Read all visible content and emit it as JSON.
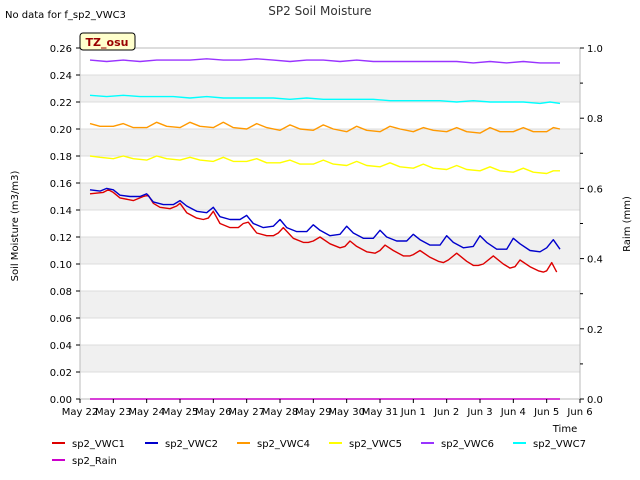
{
  "note": "No data for f_sp2_VWC3",
  "site_label": "TZ_osu",
  "chart_data": {
    "type": "line",
    "title": "SP2 Soil Moisture",
    "xlabel": "Time",
    "ylabel": "Soil Moisture (m3/m3)",
    "y2label": "Raim (mm)",
    "xlim": [
      0,
      15
    ],
    "ylim": [
      0.0,
      0.26
    ],
    "y2lim": [
      0.0,
      1.0
    ],
    "x_ticks": [
      0,
      1,
      2,
      3,
      4,
      5,
      6,
      7,
      8,
      9,
      10,
      11,
      12,
      13,
      14,
      15
    ],
    "x_tick_labels": [
      "May 22",
      "May 23",
      "May 24",
      "May 25",
      "May 26",
      "May 27",
      "May 28",
      "May 29",
      "May 30",
      "May 31",
      "Jun 1",
      "Jun 2",
      "Jun 3",
      "Jun 4",
      "Jun 5",
      "Jun 6"
    ],
    "y_ticks": [
      0.0,
      0.02,
      0.04,
      0.06,
      0.08,
      0.1,
      0.12,
      0.14,
      0.16,
      0.18,
      0.2,
      0.22,
      0.24,
      0.26
    ],
    "y_tick_labels": [
      "0.00",
      "0.02",
      "0.04",
      "0.06",
      "0.08",
      "0.10",
      "0.12",
      "0.14",
      "0.16",
      "0.18",
      "0.20",
      "0.22",
      "0.24",
      "0.26"
    ],
    "y2_ticks": [
      0.0,
      0.2,
      0.4,
      0.6,
      0.8,
      1.0
    ],
    "y2_tick_labels": [
      "0.0",
      "0.2",
      "0.4",
      "0.6",
      "0.8",
      "1.0"
    ],
    "series": [
      {
        "name": "sp2_VWC1",
        "color": "#dd0000",
        "x": [
          0.3,
          0.7,
          0.85,
          1.0,
          1.2,
          1.6,
          1.9,
          2.05,
          2.2,
          2.4,
          2.7,
          2.9,
          3.0,
          3.2,
          3.5,
          3.7,
          3.85,
          4.0,
          4.2,
          4.5,
          4.75,
          4.9,
          5.05,
          5.3,
          5.6,
          5.8,
          5.95,
          6.1,
          6.4,
          6.7,
          6.85,
          7.0,
          7.2,
          7.5,
          7.8,
          7.95,
          8.1,
          8.3,
          8.6,
          8.85,
          9.0,
          9.15,
          9.4,
          9.7,
          9.9,
          10.0,
          10.2,
          10.5,
          10.75,
          10.9,
          11.05,
          11.3,
          11.6,
          11.8,
          11.95,
          12.1,
          12.4,
          12.7,
          12.9,
          13.05,
          13.2,
          13.5,
          13.75,
          13.9,
          14.0,
          14.15,
          14.3
        ],
        "y": [
          0.152,
          0.153,
          0.155,
          0.153,
          0.149,
          0.147,
          0.15,
          0.151,
          0.145,
          0.142,
          0.141,
          0.143,
          0.145,
          0.138,
          0.134,
          0.133,
          0.134,
          0.139,
          0.13,
          0.127,
          0.127,
          0.13,
          0.131,
          0.123,
          0.121,
          0.121,
          0.123,
          0.127,
          0.119,
          0.116,
          0.116,
          0.117,
          0.12,
          0.115,
          0.112,
          0.113,
          0.117,
          0.113,
          0.109,
          0.108,
          0.11,
          0.114,
          0.11,
          0.106,
          0.106,
          0.107,
          0.11,
          0.105,
          0.102,
          0.101,
          0.103,
          0.108,
          0.102,
          0.099,
          0.099,
          0.1,
          0.106,
          0.1,
          0.097,
          0.098,
          0.103,
          0.098,
          0.095,
          0.094,
          0.095,
          0.101,
          0.094
        ]
      },
      {
        "name": "sp2_VWC2",
        "color": "#0000cc",
        "x": [
          0.3,
          0.6,
          0.8,
          1.0,
          1.2,
          1.5,
          1.8,
          2.0,
          2.2,
          2.5,
          2.8,
          3.0,
          3.2,
          3.5,
          3.8,
          4.0,
          4.2,
          4.5,
          4.8,
          5.0,
          5.2,
          5.5,
          5.8,
          6.0,
          6.2,
          6.5,
          6.8,
          7.0,
          7.2,
          7.5,
          7.8,
          8.0,
          8.2,
          8.5,
          8.8,
          9.0,
          9.2,
          9.5,
          9.8,
          10.0,
          10.2,
          10.5,
          10.8,
          11.0,
          11.2,
          11.5,
          11.8,
          12.0,
          12.2,
          12.5,
          12.8,
          13.0,
          13.2,
          13.5,
          13.8,
          14.0,
          14.2,
          14.4
        ],
        "y": [
          0.155,
          0.154,
          0.156,
          0.155,
          0.151,
          0.15,
          0.15,
          0.152,
          0.146,
          0.144,
          0.144,
          0.147,
          0.143,
          0.139,
          0.138,
          0.142,
          0.135,
          0.133,
          0.133,
          0.136,
          0.13,
          0.127,
          0.128,
          0.133,
          0.127,
          0.124,
          0.124,
          0.129,
          0.125,
          0.121,
          0.122,
          0.128,
          0.123,
          0.119,
          0.119,
          0.125,
          0.12,
          0.117,
          0.117,
          0.122,
          0.118,
          0.114,
          0.114,
          0.121,
          0.116,
          0.112,
          0.113,
          0.121,
          0.116,
          0.111,
          0.111,
          0.119,
          0.115,
          0.11,
          0.109,
          0.112,
          0.118,
          0.111
        ]
      },
      {
        "name": "sp2_VWC4",
        "color": "#ff9900",
        "x": [
          0.3,
          0.6,
          1.0,
          1.3,
          1.6,
          2.0,
          2.3,
          2.6,
          3.0,
          3.3,
          3.6,
          4.0,
          4.3,
          4.6,
          5.0,
          5.3,
          5.6,
          6.0,
          6.3,
          6.6,
          7.0,
          7.3,
          7.6,
          8.0,
          8.3,
          8.6,
          9.0,
          9.3,
          9.6,
          10.0,
          10.3,
          10.6,
          11.0,
          11.3,
          11.6,
          12.0,
          12.3,
          12.6,
          13.0,
          13.3,
          13.6,
          14.0,
          14.2,
          14.4
        ],
        "y": [
          0.204,
          0.202,
          0.202,
          0.204,
          0.201,
          0.201,
          0.205,
          0.202,
          0.201,
          0.205,
          0.202,
          0.201,
          0.205,
          0.201,
          0.2,
          0.204,
          0.201,
          0.199,
          0.203,
          0.2,
          0.199,
          0.203,
          0.2,
          0.198,
          0.202,
          0.199,
          0.198,
          0.202,
          0.2,
          0.198,
          0.201,
          0.199,
          0.198,
          0.201,
          0.198,
          0.197,
          0.201,
          0.198,
          0.198,
          0.201,
          0.198,
          0.198,
          0.201,
          0.2
        ]
      },
      {
        "name": "sp2_VWC5",
        "color": "#ffff00",
        "x": [
          0.3,
          0.6,
          1.0,
          1.3,
          1.6,
          2.0,
          2.3,
          2.6,
          3.0,
          3.3,
          3.6,
          4.0,
          4.3,
          4.6,
          5.0,
          5.3,
          5.6,
          6.0,
          6.3,
          6.6,
          7.0,
          7.3,
          7.6,
          8.0,
          8.3,
          8.6,
          9.0,
          9.3,
          9.6,
          10.0,
          10.3,
          10.6,
          11.0,
          11.3,
          11.6,
          12.0,
          12.3,
          12.6,
          13.0,
          13.3,
          13.6,
          14.0,
          14.2,
          14.4
        ],
        "y": [
          0.18,
          0.179,
          0.178,
          0.18,
          0.178,
          0.177,
          0.18,
          0.178,
          0.177,
          0.179,
          0.177,
          0.176,
          0.179,
          0.176,
          0.176,
          0.178,
          0.175,
          0.175,
          0.177,
          0.174,
          0.174,
          0.177,
          0.174,
          0.173,
          0.176,
          0.173,
          0.172,
          0.175,
          0.172,
          0.171,
          0.174,
          0.171,
          0.17,
          0.173,
          0.17,
          0.169,
          0.172,
          0.169,
          0.168,
          0.171,
          0.168,
          0.167,
          0.169,
          0.169
        ]
      },
      {
        "name": "sp2_VWC6",
        "color": "#9933ff",
        "x": [
          0.3,
          0.8,
          1.3,
          1.8,
          2.3,
          2.8,
          3.3,
          3.8,
          4.3,
          4.8,
          5.3,
          5.8,
          6.3,
          6.8,
          7.3,
          7.8,
          8.3,
          8.8,
          9.3,
          9.8,
          10.3,
          10.8,
          11.3,
          11.8,
          12.3,
          12.8,
          13.3,
          13.8,
          14.1,
          14.4
        ],
        "y": [
          0.251,
          0.25,
          0.251,
          0.25,
          0.251,
          0.251,
          0.251,
          0.252,
          0.251,
          0.251,
          0.252,
          0.251,
          0.25,
          0.251,
          0.251,
          0.25,
          0.251,
          0.25,
          0.25,
          0.25,
          0.25,
          0.25,
          0.25,
          0.249,
          0.25,
          0.249,
          0.25,
          0.249,
          0.249,
          0.249
        ]
      },
      {
        "name": "sp2_VWC7",
        "color": "#00ffff",
        "x": [
          0.3,
          0.8,
          1.3,
          1.8,
          2.3,
          2.8,
          3.3,
          3.8,
          4.3,
          4.8,
          5.3,
          5.8,
          6.3,
          6.8,
          7.3,
          7.8,
          8.3,
          8.8,
          9.3,
          9.8,
          10.3,
          10.8,
          11.3,
          11.8,
          12.3,
          12.8,
          13.3,
          13.8,
          14.1,
          14.4
        ],
        "y": [
          0.225,
          0.224,
          0.225,
          0.224,
          0.224,
          0.224,
          0.223,
          0.224,
          0.223,
          0.223,
          0.223,
          0.223,
          0.222,
          0.223,
          0.222,
          0.222,
          0.222,
          0.222,
          0.221,
          0.221,
          0.221,
          0.221,
          0.22,
          0.221,
          0.22,
          0.22,
          0.22,
          0.219,
          0.22,
          0.219
        ]
      },
      {
        "name": "sp2_Rain",
        "color": "#cc00cc",
        "axis": "y2",
        "x": [
          0.3,
          14.4
        ],
        "y": [
          0.0,
          0.0
        ]
      }
    ],
    "legend_position": "bottom"
  }
}
